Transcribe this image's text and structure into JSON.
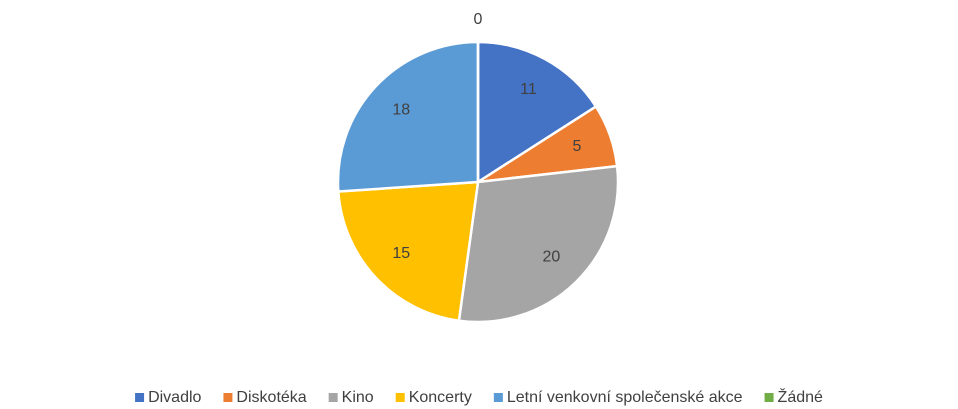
{
  "chart_data": {
    "type": "pie",
    "categories": [
      "Divadlo",
      "Diskotéka",
      "Kino",
      "Koncerty",
      "Letní venkovní společenské akce",
      "Žádné"
    ],
    "values": [
      11,
      5,
      20,
      15,
      18,
      0
    ],
    "colors": [
      "#4472c4",
      "#ed7d31",
      "#a5a5a5",
      "#ffc000",
      "#5b9bd5",
      "#70ad47"
    ],
    "legend": "bottom"
  }
}
